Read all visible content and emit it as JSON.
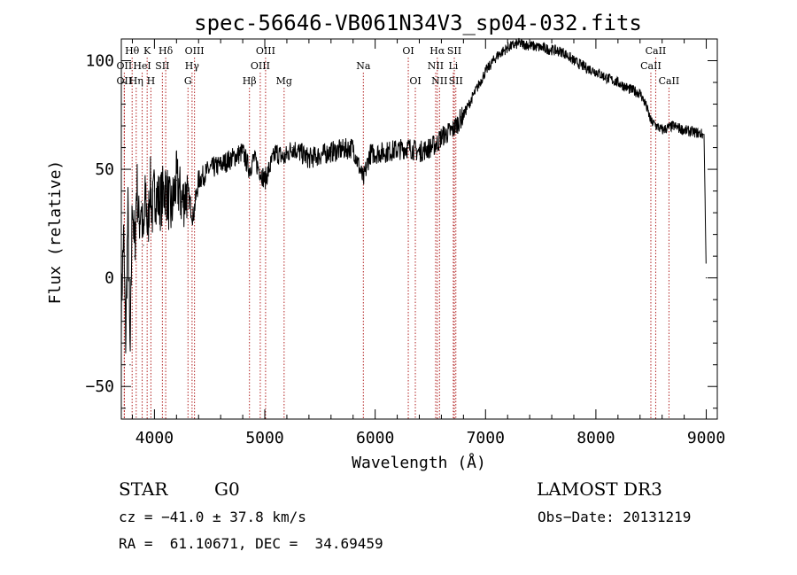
{
  "chart_data": {
    "type": "line",
    "title": "spec-56646-VB061N34V3_sp04-032.fits",
    "xlabel": "Wavelength (Å)",
    "ylabel": "Flux (relative)",
    "xlim": [
      3700,
      9100
    ],
    "ylim": [
      -65,
      110
    ],
    "x_ticks": [
      4000,
      5000,
      6000,
      7000,
      8000,
      9000
    ],
    "y_ticks": [
      -50,
      0,
      50,
      100
    ],
    "x_tick_labels": [
      "4000",
      "5000",
      "6000",
      "7000",
      "8000",
      "9000"
    ],
    "y_tick_labels": [
      "−50",
      "0",
      "50",
      "100"
    ],
    "series": [
      {
        "name": "flux",
        "x": [
          3700,
          3720,
          3740,
          3760,
          3780,
          3800,
          3820,
          3840,
          3860,
          3880,
          3900,
          3920,
          3940,
          3960,
          3980,
          4000,
          4050,
          4100,
          4150,
          4200,
          4250,
          4300,
          4350,
          4400,
          4500,
          4600,
          4700,
          4800,
          4861,
          4900,
          5000,
          5100,
          5175,
          5250,
          5400,
          5600,
          5800,
          5893,
          5950,
          6100,
          6300,
          6400,
          6500,
          6563,
          6600,
          6700,
          6800,
          6900,
          7000,
          7100,
          7200,
          7300,
          7400,
          7500,
          7600,
          7700,
          7800,
          7900,
          8000,
          8100,
          8200,
          8300,
          8400,
          8450,
          8500,
          8550,
          8600,
          8700,
          8800,
          8900,
          8980,
          9000
        ],
        "y": [
          -15,
          20,
          -30,
          30,
          -40,
          40,
          10,
          45,
          25,
          35,
          15,
          40,
          20,
          45,
          30,
          40,
          35,
          42,
          30,
          45,
          35,
          40,
          28,
          45,
          50,
          52,
          55,
          58,
          50,
          55,
          45,
          58,
          55,
          60,
          55,
          58,
          60,
          45,
          57,
          58,
          60,
          58,
          60,
          62,
          65,
          68,
          75,
          85,
          95,
          102,
          106,
          108,
          107,
          106,
          105,
          104,
          100,
          97,
          95,
          92,
          90,
          87,
          85,
          80,
          72,
          70,
          68,
          70,
          68,
          67,
          66,
          0
        ]
      }
    ],
    "lines": [
      {
        "label": "Hθ",
        "wl": 3798,
        "row": 0
      },
      {
        "label": "K",
        "wl": 3934,
        "row": 0
      },
      {
        "label": "Hδ",
        "wl": 4102,
        "row": 0
      },
      {
        "label": "OIII",
        "wl": 4363,
        "row": 0
      },
      {
        "label": "OIII",
        "wl": 5007,
        "row": 0
      },
      {
        "label": "OI",
        "wl": 6300,
        "row": 0
      },
      {
        "label": "Hα",
        "wl": 6563,
        "row": 0
      },
      {
        "label": "SII",
        "wl": 6717,
        "row": 0
      },
      {
        "label": "CaII",
        "wl": 8542,
        "row": 0
      },
      {
        "label": "OII",
        "wl": 3727,
        "row": 1
      },
      {
        "label": "HeI",
        "wl": 3889,
        "row": 1
      },
      {
        "label": "SII",
        "wl": 4072,
        "row": 1
      },
      {
        "label": "Hγ",
        "wl": 4341,
        "row": 1
      },
      {
        "label": "OIII",
        "wl": 4959,
        "row": 1
      },
      {
        "label": "Na",
        "wl": 5893,
        "row": 1
      },
      {
        "label": "NII",
        "wl": 6548,
        "row": 1
      },
      {
        "label": "Li",
        "wl": 6708,
        "row": 1
      },
      {
        "label": "CaII",
        "wl": 8498,
        "row": 1
      },
      {
        "label": "OII",
        "wl": 3727,
        "row": 2
      },
      {
        "label": "Hη",
        "wl": 3835,
        "row": 2
      },
      {
        "label": "H",
        "wl": 3968,
        "row": 2
      },
      {
        "label": "G",
        "wl": 4304,
        "row": 2
      },
      {
        "label": "Hβ",
        "wl": 4861,
        "row": 2
      },
      {
        "label": "Mg",
        "wl": 5175,
        "row": 2
      },
      {
        "label": "OI",
        "wl": 6364,
        "row": 2
      },
      {
        "label": "NII",
        "wl": 6583,
        "row": 2
      },
      {
        "label": "SII",
        "wl": 6731,
        "row": 2
      },
      {
        "label": "CaII",
        "wl": 8662,
        "row": 2
      }
    ]
  },
  "info": {
    "object_class": "STAR",
    "subclass": "G0",
    "survey": "LAMOST DR3",
    "cz": "cz = −41.0 ± 37.8 km/s",
    "obs_date": "Obs−Date: 20131219",
    "radec": "RA =  61.10671, DEC =  34.69459"
  },
  "colors": {
    "line_markers": "#b22222",
    "spectrum": "#000000"
  }
}
